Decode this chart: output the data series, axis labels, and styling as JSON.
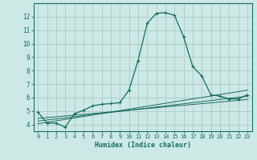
{
  "xlabel": "Humidex (Indice chaleur)",
  "background_color": "#cce9e5",
  "grid_color": "#b0ceca",
  "line_color": "#1a6b5e",
  "xlim": [
    -0.5,
    23.5
  ],
  "ylim": [
    3.5,
    13.0
  ],
  "xticks": [
    0,
    1,
    2,
    3,
    4,
    5,
    6,
    7,
    8,
    9,
    10,
    11,
    12,
    13,
    14,
    15,
    16,
    17,
    18,
    19,
    20,
    21,
    22,
    23
  ],
  "yticks": [
    4,
    5,
    6,
    7,
    8,
    9,
    10,
    11,
    12
  ],
  "series_main": {
    "x": [
      0,
      1,
      2,
      3,
      4,
      5,
      6,
      7,
      8,
      9,
      10,
      11,
      12,
      13,
      14,
      15,
      16,
      17,
      18,
      19,
      20,
      21,
      22,
      23
    ],
    "y": [
      4.9,
      4.1,
      4.1,
      3.8,
      4.8,
      5.05,
      5.38,
      5.5,
      5.55,
      5.62,
      6.55,
      8.75,
      11.5,
      12.25,
      12.3,
      12.1,
      10.5,
      8.3,
      7.6,
      6.2,
      6.1,
      5.9,
      5.9,
      6.2
    ]
  },
  "series_lines": [
    {
      "x": [
        0,
        23
      ],
      "y": [
        4.05,
        6.55
      ]
    },
    {
      "x": [
        0,
        23
      ],
      "y": [
        4.25,
        6.1
      ]
    },
    {
      "x": [
        0,
        23
      ],
      "y": [
        4.45,
        5.85
      ]
    }
  ]
}
